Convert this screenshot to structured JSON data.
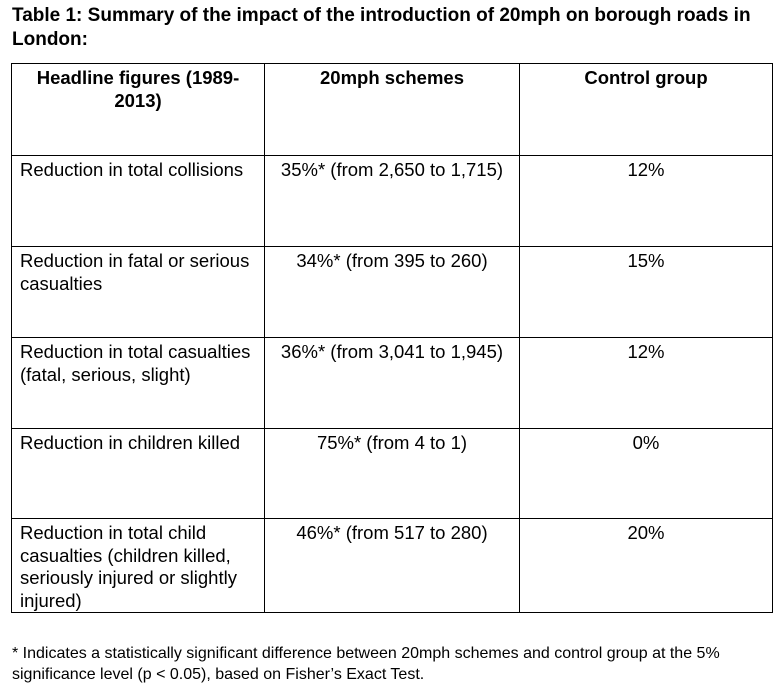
{
  "document": {
    "title": "Table 1: Summary of the impact of the introduction of 20mph on borough roads in London:"
  },
  "table": {
    "headers": [
      "Headline figures (1989-2013)",
      "20mph schemes",
      "Control group"
    ],
    "rows": [
      {
        "label": "Reduction in total collisions",
        "schemes": "35%* (from 2,650 to 1,715)",
        "control": "12%"
      },
      {
        "label": "Reduction in fatal or serious casualties",
        "schemes": "34%* (from 395 to 260)",
        "control": "15%"
      },
      {
        "label": "Reduction in total casualties (fatal, serious, slight)",
        "schemes": "36%* (from 3,041 to 1,945)",
        "control": "12%"
      },
      {
        "label": "Reduction in children killed",
        "schemes": "75%* (from 4 to 1)",
        "control": "0%"
      },
      {
        "label": "Reduction in total child casualties (children killed, seriously injured or slightly injured)",
        "schemes": "46%* (from 517 to 280)",
        "control": "20%"
      }
    ]
  },
  "footnote": "* Indicates a statistically significant difference between 20mph schemes and control group at the 5% significance level (p < 0.05), based on Fisher’s Exact Test."
}
